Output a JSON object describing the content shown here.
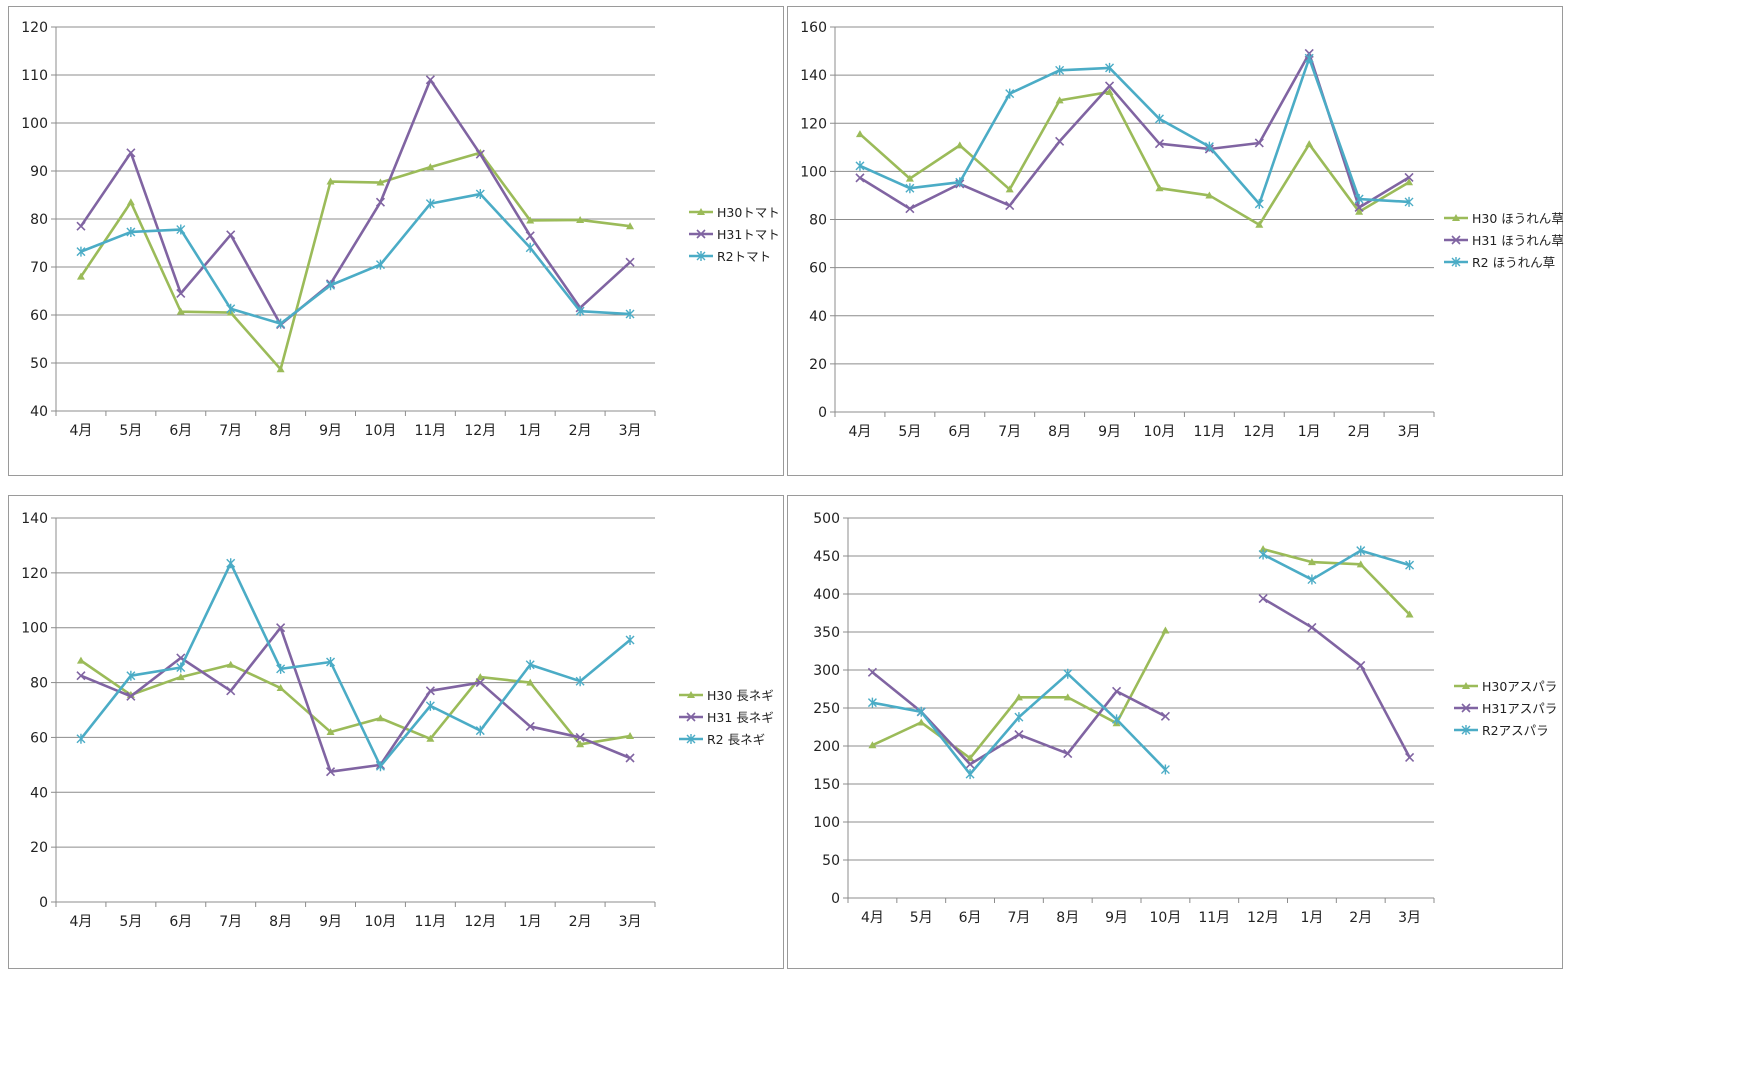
{
  "colors": {
    "H30": "#9bbb59",
    "H31": "#8064a2",
    "R2": "#4bacc6"
  },
  "chart_data": [
    {
      "type": "line",
      "title": "",
      "categories": [
        "4月",
        "5月",
        "6月",
        "7月",
        "8月",
        "9月",
        "10月",
        "11月",
        "12月",
        "1月",
        "2月",
        "3月"
      ],
      "ylim": [
        40,
        120
      ],
      "yticks": [
        40,
        50,
        60,
        70,
        80,
        90,
        100,
        110,
        120
      ],
      "grid": true,
      "legend": "right",
      "series": [
        {
          "name": "H30トマト",
          "marker": "triangle",
          "color": "#9bbb59",
          "values": [
            68,
            83.5,
            60.7,
            60.5,
            48.7,
            87.8,
            87.6,
            90.8,
            93.8,
            79.7,
            79.8,
            78.5
          ]
        },
        {
          "name": "H31トマト",
          "marker": "x",
          "color": "#8064a2",
          "values": [
            78.5,
            93.8,
            64.5,
            76.7,
            58,
            66.5,
            83.5,
            109,
            93.5,
            76.5,
            61.5,
            71
          ]
        },
        {
          "name": "R2トマト",
          "marker": "star",
          "color": "#4bacc6",
          "values": [
            73.2,
            77.3,
            77.8,
            61.3,
            58.2,
            66.2,
            70.5,
            83.2,
            85.2,
            74,
            60.8,
            60.2
          ]
        }
      ]
    },
    {
      "type": "line",
      "title": "",
      "categories": [
        "4月",
        "5月",
        "6月",
        "7月",
        "8月",
        "9月",
        "10月",
        "11月",
        "12月",
        "1月",
        "2月",
        "3月"
      ],
      "ylim": [
        0,
        160
      ],
      "yticks": [
        0,
        20,
        40,
        60,
        80,
        100,
        120,
        140,
        160
      ],
      "grid": true,
      "legend": "right",
      "series": [
        {
          "name": "H30 ほうれん草",
          "marker": "triangle",
          "color": "#9bbb59",
          "values": [
            115.5,
            97,
            110.8,
            92.5,
            129.5,
            133,
            93,
            90,
            77.8,
            111.3,
            83.2,
            95.5
          ]
        },
        {
          "name": "H31 ほうれん草",
          "marker": "x",
          "color": "#8064a2",
          "values": [
            97.3,
            84.5,
            94.8,
            85.8,
            112.5,
            135.5,
            111.5,
            109.3,
            111.8,
            149,
            85,
            97.5
          ]
        },
        {
          "name": "R2 ほうれん草",
          "marker": "star",
          "color": "#4bacc6",
          "values": [
            102.3,
            93,
            95.5,
            132.3,
            142,
            143,
            121.8,
            110.3,
            86.5,
            147,
            88.5,
            87.3
          ]
        }
      ]
    },
    {
      "type": "line",
      "title": "",
      "categories": [
        "4月",
        "5月",
        "6月",
        "7月",
        "8月",
        "9月",
        "10月",
        "11月",
        "12月",
        "1月",
        "2月",
        "3月"
      ],
      "ylim": [
        0,
        140
      ],
      "yticks": [
        0,
        20,
        40,
        60,
        80,
        100,
        120,
        140
      ],
      "grid": true,
      "legend": "right",
      "series": [
        {
          "name": "H30 長ネギ",
          "marker": "triangle",
          "color": "#9bbb59",
          "values": [
            88,
            75.5,
            82,
            86.5,
            78,
            62,
            67,
            59.5,
            82,
            80,
            57.5,
            60.5
          ]
        },
        {
          "name": "H31 長ネギ",
          "marker": "x",
          "color": "#8064a2",
          "values": [
            82.5,
            75,
            89,
            77,
            100,
            47.5,
            50,
            77,
            80,
            64,
            60,
            52.5
          ]
        },
        {
          "name": "R2 長ネギ",
          "marker": "star",
          "color": "#4bacc6",
          "values": [
            59.5,
            82.5,
            85.5,
            123.5,
            85,
            87.5,
            49.5,
            71.5,
            62.5,
            86.5,
            80.5,
            95.5
          ]
        }
      ]
    },
    {
      "type": "line",
      "title": "",
      "categories": [
        "4月",
        "5月",
        "6月",
        "7月",
        "8月",
        "9月",
        "10月",
        "11月",
        "12月",
        "1月",
        "2月",
        "3月"
      ],
      "ylim": [
        0,
        500
      ],
      "yticks": [
        0,
        50,
        100,
        150,
        200,
        250,
        300,
        350,
        400,
        450,
        500
      ],
      "grid": true,
      "legend": "right",
      "series": [
        {
          "name": "H30アスパラ",
          "marker": "triangle",
          "color": "#9bbb59",
          "values": [
            201,
            231,
            184,
            264,
            264,
            230,
            352,
            null,
            459,
            442,
            439,
            373
          ]
        },
        {
          "name": "H31アスパラ",
          "marker": "x",
          "color": "#8064a2",
          "values": [
            297,
            245,
            176,
            215,
            190,
            272,
            239,
            null,
            394,
            356,
            306,
            185
          ]
        },
        {
          "name": "R2アスパラ",
          "marker": "star",
          "color": "#4bacc6",
          "values": [
            257,
            245,
            163,
            238,
            295,
            235,
            169,
            null,
            452,
            419,
            457,
            438
          ]
        }
      ]
    }
  ]
}
